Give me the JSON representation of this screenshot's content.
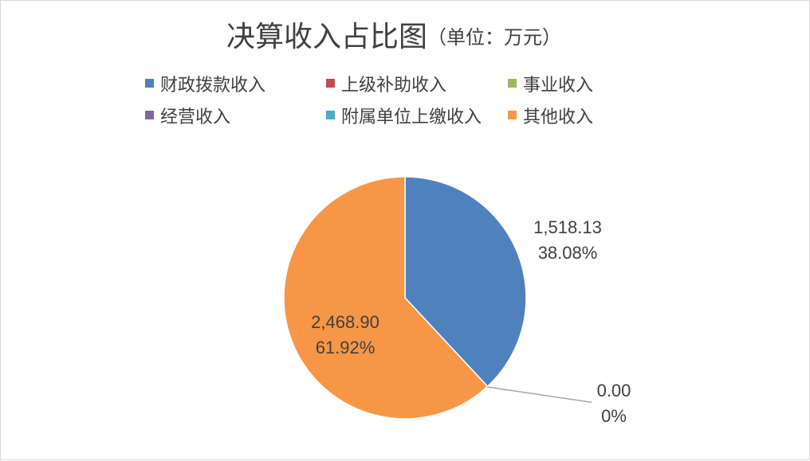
{
  "chart_data": {
    "type": "pie",
    "title": "决算收入占比图",
    "subtitle": "（单位：万元）",
    "legend_position": "top",
    "categories": [
      "财政拨款收入",
      "上级补助收入",
      "事业收入",
      "经营收入",
      "附属单位上缴收入",
      "其他收入"
    ],
    "values": [
      1518.13,
      0,
      0,
      0,
      0,
      2468.9
    ],
    "colors": [
      "#4f81bd",
      "#c0504d",
      "#9bbb59",
      "#8064a2",
      "#4bacc6",
      "#f79646"
    ],
    "data_labels": [
      {
        "value": "1,518.13",
        "percent": "38.08%"
      },
      {
        "value": "0.00",
        "percent": "0%"
      },
      {
        "value": "2,468.90",
        "percent": "61.92%"
      }
    ]
  }
}
